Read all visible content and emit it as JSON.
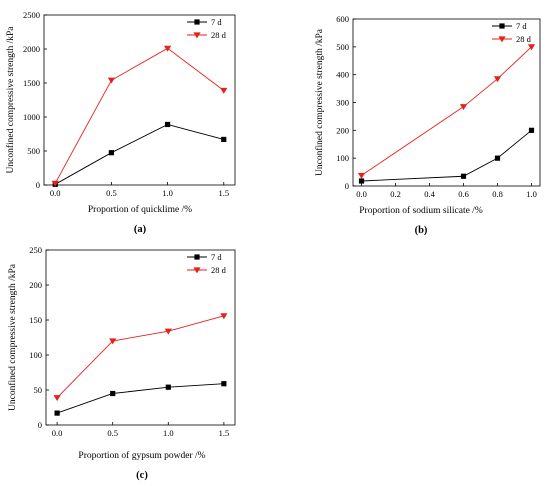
{
  "colors": {
    "d7": "#000000",
    "d28": "#e8201a"
  },
  "chart_data": [
    {
      "id": "a",
      "type": "line",
      "panel_label": "(a)",
      "xlabel": "Proportion of quicklime /%",
      "ylabel": "Unconfined compressive strength /kPa",
      "xticks": [
        "0.0",
        "0.5",
        "1.0",
        "1.5"
      ],
      "yticks": [
        "0",
        "500",
        "1000",
        "1500",
        "2000",
        "2500"
      ],
      "xlim": [
        -0.1,
        1.6
      ],
      "ylim": [
        0,
        2500
      ],
      "legend_position": "top-right",
      "x": [
        0.0,
        0.5,
        1.0,
        1.5
      ],
      "series": [
        {
          "name": "7 d",
          "marker": "square",
          "color": "#000000",
          "values": [
            10,
            475,
            890,
            670
          ]
        },
        {
          "name": "28 d",
          "marker": "triangle-down",
          "color": "#e8201a",
          "values": [
            25,
            1540,
            2010,
            1390
          ]
        }
      ]
    },
    {
      "id": "b",
      "type": "line",
      "panel_label": "(b)",
      "xlabel": "Proportion of sodium silicate /%",
      "ylabel": "Unconfined compressive strength /kPa",
      "xticks": [
        "0.0",
        "0.2",
        "0.4",
        "0.6",
        "0.8",
        "1.0"
      ],
      "yticks": [
        "0",
        "100",
        "200",
        "300",
        "400",
        "500",
        "600"
      ],
      "xlim": [
        -0.05,
        1.05
      ],
      "ylim": [
        0,
        600
      ],
      "legend_position": "top-right",
      "x": [
        0.0,
        0.6,
        0.8,
        1.0
      ],
      "series": [
        {
          "name": "7 d",
          "marker": "square",
          "color": "#000000",
          "values": [
            18,
            35,
            100,
            200
          ]
        },
        {
          "name": "28 d",
          "marker": "triangle-down",
          "color": "#e8201a",
          "values": [
            38,
            285,
            385,
            500
          ]
        }
      ]
    },
    {
      "id": "c",
      "type": "line",
      "panel_label": "(c)",
      "xlabel": "Proportion of gypsum powder /%",
      "ylabel": "Unconfined compressive strength /kPa",
      "xticks": [
        "0.0",
        "0.5",
        "1.0",
        "1.5"
      ],
      "yticks": [
        "0",
        "50",
        "100",
        "150",
        "200",
        "250"
      ],
      "xlim": [
        -0.1,
        1.6
      ],
      "ylim": [
        0,
        250
      ],
      "legend_position": "top-right",
      "x": [
        0.0,
        0.5,
        1.0,
        1.5
      ],
      "series": [
        {
          "name": "7 d",
          "marker": "square",
          "color": "#000000",
          "values": [
            17,
            45,
            54,
            59
          ]
        },
        {
          "name": "28 d",
          "marker": "triangle-down",
          "color": "#e8201a",
          "values": [
            39,
            120,
            134,
            156
          ]
        }
      ]
    }
  ]
}
